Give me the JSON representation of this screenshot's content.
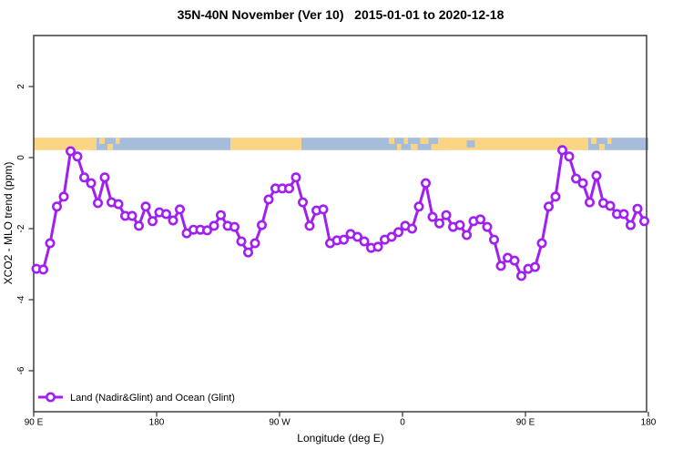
{
  "chart_data": {
    "type": "line",
    "title": "35N-40N November (Ver 10)   2015-01-01 to 2020-12-18",
    "xlabel": "Longitude (deg E)",
    "ylabel": "XCO2 - MLO trend (ppm)",
    "legend_label": "Land (Nadir&Glint) and Ocean (Glint)",
    "colors": {
      "series": "#a020f0",
      "land": "#fcd584",
      "ocean": "#a6bcdb",
      "frame": "#3d3d3d"
    },
    "x_axis": {
      "note": "longitude axis spans 450 deg, 90E wrapping east to 180 again",
      "range": [
        90,
        540
      ],
      "ticks": [
        {
          "pos": 90,
          "label": "90 E"
        },
        {
          "pos": 180,
          "label": "180"
        },
        {
          "pos": 270,
          "label": "90 W"
        },
        {
          "pos": 360,
          "label": "0"
        },
        {
          "pos": 450,
          "label": "90 E"
        },
        {
          "pos": 540,
          "label": "180"
        }
      ]
    },
    "y_axis": {
      "range": [
        -7.2,
        3.4
      ],
      "ticks": [
        {
          "pos": 2,
          "label": "2"
        },
        {
          "pos": 0,
          "label": "0"
        },
        {
          "pos": -2,
          "label": "-2"
        },
        {
          "pos": -4,
          "label": "-4"
        },
        {
          "pos": -6,
          "label": "-6"
        }
      ]
    },
    "series": {
      "name": "Land (Nadir&Glint) and Ocean (Glint)",
      "x_start": 92,
      "x_step": 5,
      "values": [
        -3.13,
        -3.15,
        -2.41,
        -1.38,
        -1.1,
        0.18,
        0.03,
        -0.56,
        -0.72,
        -1.28,
        -0.56,
        -1.26,
        -1.31,
        -1.64,
        -1.64,
        -1.92,
        -1.38,
        -1.79,
        -1.54,
        -1.59,
        -1.77,
        -1.46,
        -2.13,
        -2.03,
        -2.03,
        -2.05,
        -1.92,
        -1.62,
        -1.92,
        -1.95,
        -2.36,
        -2.67,
        -2.41,
        -1.9,
        -1.18,
        -0.87,
        -0.87,
        -0.87,
        -0.56,
        -1.26,
        -1.92,
        -1.49,
        -1.46,
        -2.41,
        -2.33,
        -2.31,
        -2.15,
        -2.23,
        -2.36,
        -2.54,
        -2.51,
        -2.31,
        -2.23,
        -2.1,
        -1.92,
        -2.0,
        -1.38,
        -0.72,
        -1.67,
        -1.85,
        -1.62,
        -1.95,
        -1.9,
        -2.18,
        -1.79,
        -1.74,
        -1.95,
        -2.31,
        -3.05,
        -2.82,
        -2.9,
        -3.33,
        -3.13,
        -3.08,
        -2.41,
        -1.38,
        -1.1,
        0.21,
        0.03,
        -0.59,
        -0.72,
        -1.26,
        -0.51,
        -1.28,
        -1.36,
        -1.59,
        -1.59,
        -1.9,
        -1.44,
        -1.79
      ]
    },
    "map_strip": {
      "top_value": 0.56,
      "bottom_value": 0.21,
      "base_segments": [
        {
          "from": 90,
          "to": 131,
          "type": "land"
        },
        {
          "from": 131,
          "to": 234,
          "type": "ocean"
        },
        {
          "from": 234,
          "to": 286,
          "type": "land"
        },
        {
          "from": 286,
          "to": 392,
          "type": "ocean"
        },
        {
          "from": 392,
          "to": 491,
          "type": "land"
        },
        {
          "from": 491,
          "to": 540,
          "type": "ocean"
        }
      ],
      "patches": [
        {
          "from": 131,
          "to": 136,
          "type": "land",
          "band": "full"
        },
        {
          "from": 138,
          "to": 142,
          "type": "land",
          "band": "top"
        },
        {
          "from": 144,
          "to": 148,
          "type": "land",
          "band": "bottom"
        },
        {
          "from": 150,
          "to": 153,
          "type": "land",
          "band": "top"
        },
        {
          "from": 350,
          "to": 354,
          "type": "land",
          "band": "top"
        },
        {
          "from": 356,
          "to": 359,
          "type": "land",
          "band": "bottom"
        },
        {
          "from": 361,
          "to": 364,
          "type": "land",
          "band": "top"
        },
        {
          "from": 366,
          "to": 371,
          "type": "land",
          "band": "bottom"
        },
        {
          "from": 373,
          "to": 379,
          "type": "land",
          "band": "top"
        },
        {
          "from": 381,
          "to": 392,
          "type": "land",
          "band": "bottom"
        },
        {
          "from": 386,
          "to": 392,
          "type": "land",
          "band": "full"
        },
        {
          "from": 407,
          "to": 413,
          "type": "ocean",
          "band": "mid"
        },
        {
          "from": 491,
          "to": 496,
          "type": "land",
          "band": "full"
        },
        {
          "from": 498,
          "to": 502,
          "type": "land",
          "band": "top"
        },
        {
          "from": 504,
          "to": 508,
          "type": "land",
          "band": "bottom"
        },
        {
          "from": 510,
          "to": 513,
          "type": "land",
          "band": "top"
        }
      ]
    }
  }
}
